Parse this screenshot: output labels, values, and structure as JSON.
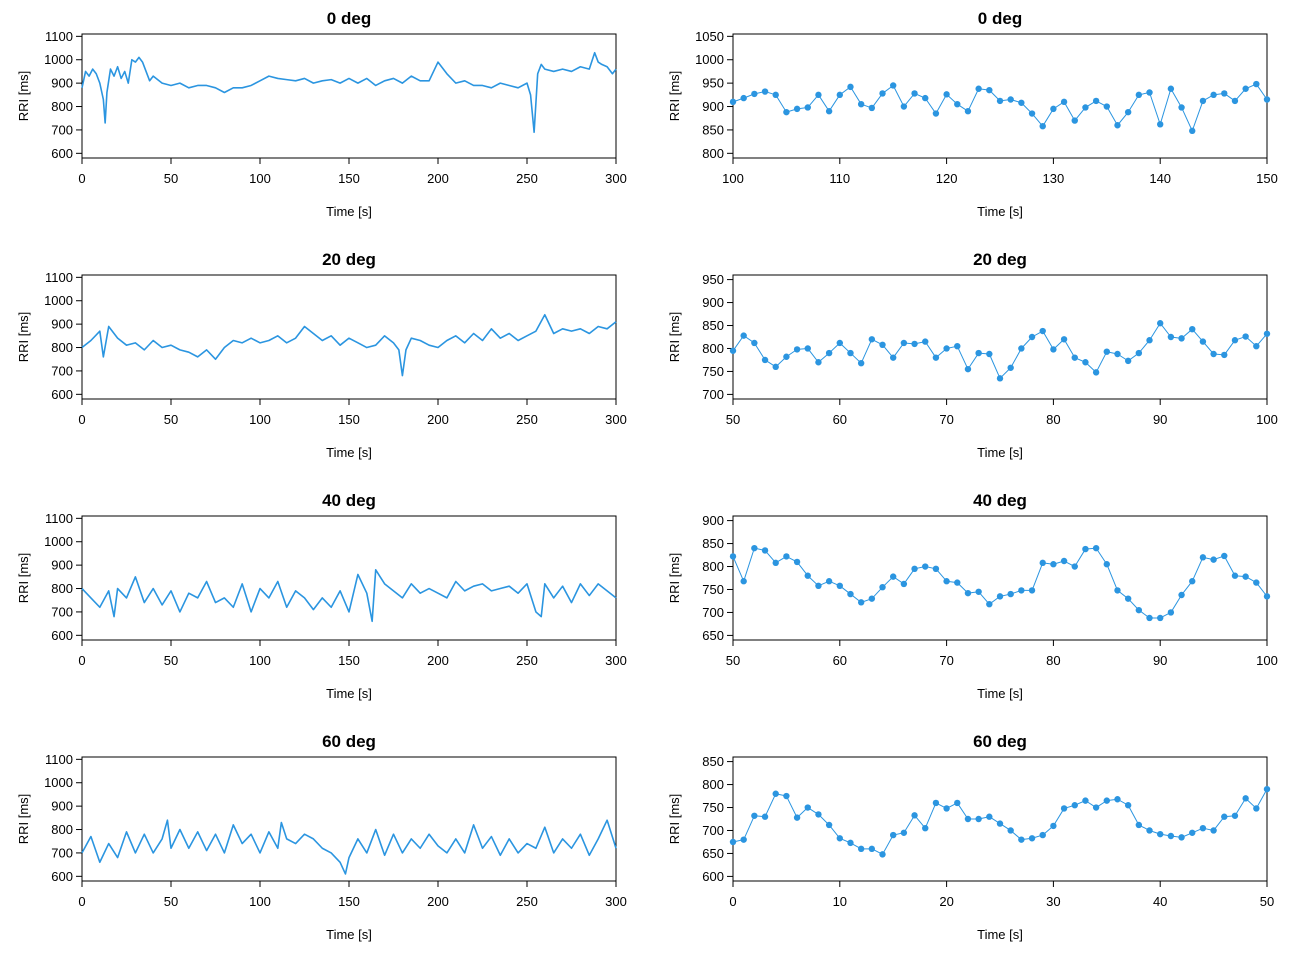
{
  "style": {
    "line_color": "#2b95e0",
    "axis_color": "#000000"
  },
  "charts": [
    {
      "type": "line",
      "title": "0 deg",
      "xlabel": "Time [s]",
      "ylabel": "RRI [ms]",
      "xlim": [
        0,
        300
      ],
      "ylim": [
        580,
        1110
      ],
      "xticks": [
        0,
        50,
        100,
        150,
        200,
        250,
        300
      ],
      "yticks": [
        600,
        700,
        800,
        900,
        1000,
        1100
      ],
      "markers": false,
      "x": [
        0,
        2,
        4,
        6,
        8,
        10,
        12,
        13,
        14,
        16,
        18,
        20,
        22,
        24,
        26,
        28,
        30,
        32,
        34,
        36,
        38,
        40,
        45,
        50,
        55,
        60,
        65,
        70,
        75,
        80,
        85,
        90,
        95,
        100,
        105,
        110,
        115,
        120,
        125,
        130,
        135,
        140,
        145,
        150,
        155,
        160,
        165,
        170,
        175,
        180,
        185,
        190,
        195,
        200,
        205,
        210,
        215,
        220,
        225,
        230,
        235,
        240,
        245,
        250,
        252,
        254,
        256,
        258,
        260,
        265,
        270,
        275,
        280,
        285,
        288,
        290,
        292,
        295,
        298,
        300
      ],
      "y": [
        880,
        950,
        930,
        960,
        940,
        900,
        830,
        730,
        860,
        960,
        930,
        970,
        920,
        950,
        900,
        1000,
        990,
        1010,
        990,
        950,
        910,
        930,
        900,
        890,
        900,
        880,
        890,
        890,
        880,
        860,
        880,
        880,
        890,
        910,
        930,
        920,
        915,
        910,
        920,
        900,
        910,
        915,
        900,
        920,
        900,
        920,
        890,
        910,
        920,
        900,
        930,
        910,
        910,
        990,
        940,
        900,
        910,
        890,
        890,
        880,
        900,
        890,
        880,
        900,
        850,
        690,
        940,
        980,
        960,
        950,
        960,
        950,
        970,
        960,
        1030,
        990,
        980,
        970,
        940,
        960
      ]
    },
    {
      "type": "line",
      "title": "0 deg",
      "xlabel": "Time [s]",
      "ylabel": "RRI [ms]",
      "xlim": [
        100,
        150
      ],
      "ylim": [
        790,
        1055
      ],
      "xticks": [
        100,
        110,
        120,
        130,
        140,
        150
      ],
      "yticks": [
        800,
        850,
        900,
        950,
        1000,
        1050
      ],
      "markers": true,
      "x": [
        100,
        101,
        102,
        103,
        104,
        105,
        106,
        107,
        108,
        109,
        110,
        111,
        112,
        113,
        114,
        115,
        116,
        117,
        118,
        119,
        120,
        121,
        122,
        123,
        124,
        125,
        126,
        127,
        128,
        129,
        130,
        131,
        132,
        133,
        134,
        135,
        136,
        137,
        138,
        139,
        140,
        141,
        142,
        143,
        144,
        145,
        146,
        147,
        148,
        149,
        150
      ],
      "y": [
        910,
        918,
        927,
        932,
        925,
        888,
        895,
        898,
        925,
        890,
        925,
        942,
        905,
        897,
        928,
        945,
        900,
        928,
        918,
        885,
        926,
        905,
        890,
        938,
        935,
        912,
        915,
        908,
        885,
        858,
        895,
        910,
        870,
        898,
        912,
        900,
        860,
        888,
        925,
        930,
        862,
        938,
        898,
        848,
        912,
        925,
        928,
        912,
        938,
        948,
        915
      ]
    },
    {
      "type": "line",
      "title": "20 deg",
      "xlabel": "Time [s]",
      "ylabel": "RRI [ms]",
      "xlim": [
        0,
        300
      ],
      "ylim": [
        580,
        1110
      ],
      "xticks": [
        0,
        50,
        100,
        150,
        200,
        250,
        300
      ],
      "yticks": [
        600,
        700,
        800,
        900,
        1000,
        1100
      ],
      "markers": false,
      "x": [
        0,
        5,
        10,
        12,
        15,
        20,
        25,
        30,
        35,
        40,
        45,
        50,
        55,
        60,
        65,
        70,
        75,
        80,
        85,
        90,
        95,
        100,
        105,
        110,
        115,
        120,
        125,
        130,
        135,
        140,
        145,
        150,
        155,
        160,
        165,
        170,
        175,
        178,
        180,
        182,
        185,
        190,
        195,
        200,
        205,
        210,
        215,
        220,
        225,
        230,
        235,
        240,
        245,
        250,
        255,
        260,
        265,
        270,
        275,
        280,
        285,
        290,
        295,
        300
      ],
      "y": [
        800,
        830,
        870,
        760,
        890,
        840,
        810,
        820,
        790,
        830,
        800,
        810,
        790,
        780,
        760,
        790,
        750,
        800,
        830,
        820,
        840,
        820,
        830,
        850,
        820,
        840,
        890,
        860,
        830,
        850,
        810,
        840,
        820,
        800,
        810,
        850,
        820,
        790,
        680,
        790,
        840,
        830,
        810,
        800,
        830,
        850,
        820,
        860,
        830,
        880,
        840,
        860,
        830,
        850,
        870,
        940,
        860,
        880,
        870,
        880,
        860,
        890,
        880,
        910
      ]
    },
    {
      "type": "line",
      "title": "20 deg",
      "xlabel": "Time [s]",
      "ylabel": "RRI [ms]",
      "xlim": [
        50,
        100
      ],
      "ylim": [
        690,
        960
      ],
      "xticks": [
        50,
        60,
        70,
        80,
        90,
        100
      ],
      "yticks": [
        700,
        750,
        800,
        850,
        900,
        950
      ],
      "markers": true,
      "x": [
        50,
        51,
        52,
        53,
        54,
        55,
        56,
        57,
        58,
        59,
        60,
        61,
        62,
        63,
        64,
        65,
        66,
        67,
        68,
        69,
        70,
        71,
        72,
        73,
        74,
        75,
        76,
        77,
        78,
        79,
        80,
        81,
        82,
        83,
        84,
        85,
        86,
        87,
        88,
        89,
        90,
        91,
        92,
        93,
        94,
        95,
        96,
        97,
        98,
        99,
        100
      ],
      "y": [
        795,
        828,
        812,
        775,
        760,
        782,
        798,
        800,
        770,
        790,
        812,
        790,
        768,
        820,
        808,
        780,
        812,
        810,
        815,
        780,
        800,
        805,
        755,
        790,
        788,
        735,
        758,
        800,
        825,
        838,
        798,
        820,
        780,
        770,
        748,
        793,
        788,
        773,
        790,
        818,
        855,
        825,
        822,
        842,
        815,
        788,
        786,
        818,
        826,
        805,
        832
      ]
    },
    {
      "type": "line",
      "title": "40 deg",
      "xlabel": "Time [s]",
      "ylabel": "RRI [ms]",
      "xlim": [
        0,
        300
      ],
      "ylim": [
        580,
        1110
      ],
      "xticks": [
        0,
        50,
        100,
        150,
        200,
        250,
        300
      ],
      "yticks": [
        600,
        700,
        800,
        900,
        1000,
        1100
      ],
      "markers": false,
      "x": [
        0,
        5,
        10,
        15,
        18,
        20,
        25,
        30,
        35,
        40,
        45,
        50,
        55,
        60,
        65,
        70,
        75,
        80,
        85,
        90,
        95,
        100,
        105,
        110,
        115,
        120,
        125,
        130,
        135,
        140,
        145,
        150,
        155,
        160,
        163,
        165,
        170,
        175,
        180,
        185,
        190,
        195,
        200,
        205,
        210,
        215,
        220,
        225,
        230,
        235,
        240,
        245,
        250,
        255,
        258,
        260,
        265,
        270,
        275,
        280,
        285,
        290,
        295,
        300
      ],
      "y": [
        800,
        760,
        720,
        790,
        680,
        800,
        760,
        850,
        740,
        800,
        730,
        790,
        700,
        780,
        760,
        830,
        740,
        760,
        720,
        820,
        700,
        800,
        760,
        830,
        720,
        790,
        760,
        710,
        760,
        720,
        790,
        700,
        860,
        780,
        660,
        880,
        820,
        790,
        760,
        820,
        780,
        800,
        780,
        760,
        830,
        790,
        810,
        820,
        790,
        800,
        810,
        780,
        820,
        700,
        680,
        820,
        760,
        810,
        740,
        820,
        770,
        820,
        790,
        760
      ]
    },
    {
      "type": "line",
      "title": "40 deg",
      "xlabel": "Time [s]",
      "ylabel": "RRI [ms]",
      "xlim": [
        50,
        100
      ],
      "ylim": [
        640,
        910
      ],
      "xticks": [
        50,
        60,
        70,
        80,
        90,
        100
      ],
      "yticks": [
        650,
        700,
        750,
        800,
        850,
        900
      ],
      "markers": true,
      "x": [
        50,
        51,
        52,
        53,
        54,
        55,
        56,
        57,
        58,
        59,
        60,
        61,
        62,
        63,
        64,
        65,
        66,
        67,
        68,
        69,
        70,
        71,
        72,
        73,
        74,
        75,
        76,
        77,
        78,
        79,
        80,
        81,
        82,
        83,
        84,
        85,
        86,
        87,
        88,
        89,
        90,
        91,
        92,
        93,
        94,
        95,
        96,
        97,
        98,
        99,
        100
      ],
      "y": [
        822,
        768,
        840,
        835,
        808,
        822,
        810,
        780,
        758,
        768,
        758,
        740,
        722,
        730,
        755,
        778,
        762,
        795,
        800,
        795,
        768,
        765,
        742,
        745,
        718,
        735,
        740,
        748,
        748,
        808,
        805,
        812,
        800,
        838,
        840,
        805,
        748,
        730,
        705,
        688,
        688,
        700,
        738,
        768,
        820,
        815,
        823,
        780,
        778,
        765,
        735
      ]
    },
    {
      "type": "line",
      "title": "60 deg",
      "xlabel": "Time [s]",
      "ylabel": "RRI [ms]",
      "xlim": [
        0,
        300
      ],
      "ylim": [
        580,
        1110
      ],
      "xticks": [
        0,
        50,
        100,
        150,
        200,
        250,
        300
      ],
      "yticks": [
        600,
        700,
        800,
        900,
        1000,
        1100
      ],
      "markers": false,
      "x": [
        0,
        5,
        10,
        15,
        20,
        25,
        30,
        35,
        40,
        45,
        48,
        50,
        55,
        60,
        65,
        70,
        75,
        80,
        85,
        90,
        95,
        100,
        105,
        110,
        112,
        115,
        120,
        125,
        130,
        135,
        140,
        145,
        148,
        150,
        155,
        160,
        165,
        170,
        175,
        180,
        185,
        190,
        195,
        200,
        205,
        210,
        215,
        220,
        225,
        230,
        235,
        240,
        245,
        250,
        255,
        260,
        265,
        270,
        275,
        280,
        285,
        290,
        295,
        300
      ],
      "y": [
        700,
        770,
        660,
        740,
        680,
        790,
        700,
        780,
        700,
        760,
        840,
        720,
        800,
        720,
        790,
        710,
        780,
        700,
        820,
        740,
        780,
        700,
        790,
        720,
        830,
        760,
        740,
        780,
        760,
        720,
        700,
        660,
        610,
        680,
        760,
        700,
        800,
        690,
        780,
        700,
        760,
        720,
        780,
        730,
        700,
        760,
        700,
        820,
        720,
        770,
        690,
        760,
        700,
        740,
        720,
        810,
        700,
        760,
        720,
        780,
        690,
        760,
        840,
        720
      ]
    },
    {
      "type": "line",
      "title": "60 deg",
      "xlabel": "Time [s]",
      "ylabel": "RRI [ms]",
      "xlim": [
        0,
        50
      ],
      "ylim": [
        590,
        860
      ],
      "xticks": [
        0,
        10,
        20,
        30,
        40,
        50
      ],
      "yticks": [
        600,
        650,
        700,
        750,
        800,
        850
      ],
      "markers": true,
      "x": [
        0,
        1,
        2,
        3,
        4,
        5,
        6,
        7,
        8,
        9,
        10,
        11,
        12,
        13,
        14,
        15,
        16,
        17,
        18,
        19,
        20,
        21,
        22,
        23,
        24,
        25,
        26,
        27,
        28,
        29,
        30,
        31,
        32,
        33,
        34,
        35,
        36,
        37,
        38,
        39,
        40,
        41,
        42,
        43,
        44,
        45,
        46,
        47,
        48,
        49,
        50
      ],
      "y": [
        675,
        680,
        732,
        730,
        780,
        775,
        728,
        750,
        735,
        712,
        683,
        673,
        660,
        660,
        648,
        690,
        695,
        733,
        705,
        760,
        748,
        760,
        725,
        725,
        730,
        715,
        700,
        680,
        683,
        690,
        710,
        748,
        755,
        765,
        750,
        765,
        768,
        755,
        712,
        700,
        692,
        688,
        685,
        695,
        705,
        700,
        730,
        732,
        770,
        748,
        790
      ]
    }
  ]
}
